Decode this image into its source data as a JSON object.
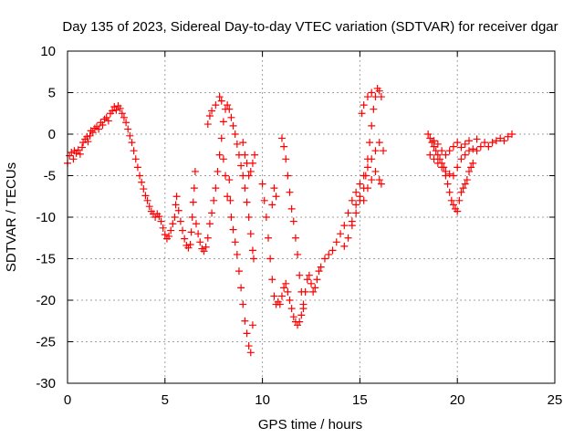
{
  "chart_data": {
    "type": "scatter",
    "title": "Day 135 of 2023, Sidereal Day-to-day VTEC variation (SDTVAR) for receiver dgar",
    "xlabel": "GPS time / hours",
    "ylabel": "SDTVAR / TECUs",
    "xlim": [
      0,
      25
    ],
    "ylim": [
      -30,
      10
    ],
    "xticks": [
      0,
      5,
      10,
      15,
      20,
      25
    ],
    "yticks": [
      -30,
      -25,
      -20,
      -15,
      -10,
      -5,
      0,
      5,
      10
    ],
    "grid": true,
    "marker": "plus",
    "color": "#ff0000",
    "points": [
      [
        0.0,
        -3.5
      ],
      [
        0.1,
        -2.6
      ],
      [
        0.2,
        -2.2
      ],
      [
        0.3,
        -3.0
      ],
      [
        0.35,
        -2.0
      ],
      [
        0.45,
        -2.3
      ],
      [
        0.55,
        -1.9
      ],
      [
        0.65,
        -2.4
      ],
      [
        0.75,
        -1.6
      ],
      [
        0.8,
        -1.0
      ],
      [
        0.9,
        -0.6
      ],
      [
        1.0,
        -0.3
      ],
      [
        1.05,
        -0.9
      ],
      [
        1.15,
        -0.2
      ],
      [
        1.2,
        0.4
      ],
      [
        1.3,
        0.2
      ],
      [
        1.4,
        0.7
      ],
      [
        1.5,
        0.9
      ],
      [
        1.6,
        0.6
      ],
      [
        1.7,
        1.4
      ],
      [
        1.8,
        1.1
      ],
      [
        1.9,
        1.8
      ],
      [
        2.0,
        2.0
      ],
      [
        2.1,
        1.6
      ],
      [
        2.2,
        2.5
      ],
      [
        2.3,
        2.8
      ],
      [
        2.4,
        3.3
      ],
      [
        2.5,
        2.9
      ],
      [
        2.6,
        3.4
      ],
      [
        2.7,
        3.1
      ],
      [
        2.8,
        2.5
      ],
      [
        2.9,
        2.0
      ],
      [
        3.0,
        1.4
      ],
      [
        3.1,
        0.6
      ],
      [
        3.2,
        -0.2
      ],
      [
        3.3,
        -1.0
      ],
      [
        3.4,
        -2.0
      ],
      [
        3.5,
        -3.0
      ],
      [
        3.6,
        -4.0
      ],
      [
        3.7,
        -5.0
      ],
      [
        3.8,
        -5.8
      ],
      [
        3.9,
        -6.6
      ],
      [
        4.0,
        -7.4
      ],
      [
        4.1,
        -8.0
      ],
      [
        4.2,
        -8.7
      ],
      [
        4.3,
        -9.3
      ],
      [
        4.4,
        -9.6
      ],
      [
        4.5,
        -10.0
      ],
      [
        4.6,
        -9.6
      ],
      [
        4.7,
        -9.9
      ],
      [
        4.8,
        -10.5
      ],
      [
        4.9,
        -11.3
      ],
      [
        5.0,
        -12.1
      ],
      [
        5.1,
        -12.6
      ],
      [
        5.2,
        -12.3
      ],
      [
        5.3,
        -11.6
      ],
      [
        5.4,
        -10.8
      ],
      [
        5.5,
        -10.0
      ],
      [
        5.55,
        -8.5
      ],
      [
        5.6,
        -7.5
      ],
      [
        5.7,
        -9.2
      ],
      [
        5.8,
        -10.5
      ],
      [
        5.9,
        -11.6
      ],
      [
        6.0,
        -12.6
      ],
      [
        6.1,
        -13.4
      ],
      [
        6.2,
        -13.7
      ],
      [
        6.3,
        -13.3
      ],
      [
        6.35,
        -11.8
      ],
      [
        6.4,
        -10.0
      ],
      [
        6.45,
        -8.2
      ],
      [
        6.5,
        -6.5
      ],
      [
        6.55,
        -4.5
      ],
      [
        6.6,
        -10.8
      ],
      [
        6.7,
        -12.0
      ],
      [
        6.8,
        -13.0
      ],
      [
        6.9,
        -13.8
      ],
      [
        7.0,
        -14.1
      ],
      [
        7.1,
        -13.6
      ],
      [
        7.2,
        -12.5
      ],
      [
        7.3,
        -10.8
      ],
      [
        7.4,
        -9.5
      ],
      [
        7.5,
        -8.0
      ],
      [
        7.6,
        -6.5
      ],
      [
        7.7,
        -4.5
      ],
      [
        7.8,
        -2.5
      ],
      [
        7.9,
        -0.5
      ],
      [
        8.0,
        1.5
      ],
      [
        8.1,
        3.0
      ],
      [
        8.2,
        3.5
      ],
      [
        8.3,
        3.0
      ],
      [
        8.4,
        2.0
      ],
      [
        8.5,
        1.0
      ],
      [
        8.6,
        0.0
      ],
      [
        8.7,
        -1.2
      ],
      [
        8.8,
        -2.5
      ],
      [
        8.9,
        -3.8
      ],
      [
        9.0,
        -5.0
      ],
      [
        9.1,
        -6.5
      ],
      [
        9.2,
        -8.2
      ],
      [
        9.3,
        -10.0
      ],
      [
        9.4,
        -12.0
      ],
      [
        9.5,
        -14.0
      ],
      [
        9.55,
        -15.0
      ],
      [
        7.2,
        1.2
      ],
      [
        7.3,
        2.2
      ],
      [
        7.4,
        2.8
      ],
      [
        7.6,
        3.5
      ],
      [
        7.8,
        4.5
      ],
      [
        7.9,
        4.0
      ],
      [
        8.3,
        -5.5
      ],
      [
        8.35,
        -8.0
      ],
      [
        8.4,
        -10.0
      ],
      [
        8.5,
        -11.5
      ],
      [
        8.6,
        -13.0
      ],
      [
        8.7,
        -14.5
      ],
      [
        8.8,
        -16.5
      ],
      [
        8.9,
        -18.5
      ],
      [
        9.0,
        -20.5
      ],
      [
        9.1,
        -22.5
      ],
      [
        9.2,
        -24.0
      ],
      [
        9.3,
        -25.5
      ],
      [
        9.4,
        -26.3
      ],
      [
        9.5,
        -23.0
      ],
      [
        8.0,
        -3.0
      ],
      [
        8.1,
        -5.0
      ],
      [
        8.2,
        -7.5
      ],
      [
        9.0,
        -1.0
      ],
      [
        9.1,
        -2.5
      ],
      [
        9.2,
        -3.5
      ],
      [
        9.3,
        -5.0
      ],
      [
        9.4,
        -4.5
      ],
      [
        9.5,
        -3.5
      ],
      [
        9.6,
        -2.5
      ],
      [
        10.0,
        -6.0
      ],
      [
        10.1,
        -8.0
      ],
      [
        10.2,
        -10.0
      ],
      [
        10.3,
        -12.5
      ],
      [
        10.4,
        -15.0
      ],
      [
        10.5,
        -17.5
      ],
      [
        10.6,
        -19.5
      ],
      [
        10.7,
        -20.5
      ],
      [
        10.8,
        -20.2
      ],
      [
        10.9,
        -20.5
      ],
      [
        11.0,
        -19.5
      ],
      [
        11.1,
        -18.5
      ],
      [
        11.2,
        -18.0
      ],
      [
        11.3,
        -19.0
      ],
      [
        11.4,
        -20.0
      ],
      [
        11.5,
        -21.0
      ],
      [
        11.6,
        -22.0
      ],
      [
        11.7,
        -22.6
      ],
      [
        11.8,
        -23.0
      ],
      [
        11.9,
        -22.6
      ],
      [
        12.0,
        -21.8
      ],
      [
        12.1,
        -20.5
      ],
      [
        12.2,
        -19.0
      ],
      [
        12.3,
        -17.5
      ],
      [
        11.0,
        -0.5
      ],
      [
        11.1,
        -1.5
      ],
      [
        11.2,
        -3.0
      ],
      [
        11.3,
        -5.0
      ],
      [
        11.4,
        -7.0
      ],
      [
        11.5,
        -9.0
      ],
      [
        11.6,
        -10.5
      ],
      [
        11.7,
        -12.5
      ],
      [
        11.8,
        -14.5
      ],
      [
        11.9,
        -17.0
      ],
      [
        12.0,
        -19.0
      ],
      [
        12.1,
        -21.0
      ],
      [
        10.5,
        -8.5
      ],
      [
        10.6,
        -6.5
      ],
      [
        10.7,
        -7.5
      ],
      [
        12.4,
        -17.0
      ],
      [
        12.5,
        -18.0
      ],
      [
        12.6,
        -19.0
      ],
      [
        12.7,
        -18.5
      ],
      [
        12.8,
        -17.5
      ],
      [
        12.9,
        -16.5
      ],
      [
        13.0,
        -16.0
      ],
      [
        13.2,
        -15.0
      ],
      [
        13.4,
        -14.5
      ],
      [
        13.6,
        -14.0
      ],
      [
        13.8,
        -13.0
      ],
      [
        14.0,
        -12.0
      ],
      [
        14.2,
        -11.0
      ],
      [
        14.4,
        -9.5
      ],
      [
        14.6,
        -8.0
      ],
      [
        14.8,
        -7.0
      ],
      [
        15.0,
        -6.0
      ],
      [
        15.2,
        -5.0
      ],
      [
        15.4,
        -4.0
      ],
      [
        15.6,
        -3.0
      ],
      [
        15.8,
        -2.0
      ],
      [
        16.0,
        -1.0
      ],
      [
        14.2,
        -13.5
      ],
      [
        14.4,
        -12.5
      ],
      [
        14.6,
        -11.0
      ],
      [
        14.8,
        -9.5
      ],
      [
        15.0,
        -8.0
      ],
      [
        15.2,
        -6.5
      ],
      [
        15.3,
        -5.0
      ],
      [
        15.4,
        -3.0
      ],
      [
        15.5,
        -1.0
      ],
      [
        15.6,
        1.0
      ],
      [
        15.7,
        3.0
      ],
      [
        15.8,
        4.5
      ],
      [
        15.9,
        5.5
      ],
      [
        16.0,
        5.2
      ],
      [
        16.1,
        4.5
      ],
      [
        15.1,
        2.5
      ],
      [
        15.2,
        3.5
      ],
      [
        15.4,
        4.5
      ],
      [
        15.6,
        5.0
      ],
      [
        14.6,
        -10.5
      ],
      [
        14.8,
        -8.5
      ],
      [
        15.0,
        -7.5
      ],
      [
        15.2,
        -8.0
      ],
      [
        15.4,
        -6.5
      ],
      [
        15.6,
        -5.5
      ],
      [
        15.8,
        -4.5
      ],
      [
        16.0,
        -5.5
      ],
      [
        16.1,
        -6.0
      ],
      [
        16.2,
        -2.0
      ],
      [
        18.5,
        0.0
      ],
      [
        18.6,
        -0.5
      ],
      [
        18.7,
        -1.0
      ],
      [
        18.8,
        -1.5
      ],
      [
        18.9,
        -2.0
      ],
      [
        19.0,
        -2.5
      ],
      [
        19.1,
        -3.0
      ],
      [
        19.2,
        -3.5
      ],
      [
        19.3,
        -4.0
      ],
      [
        19.4,
        -5.0
      ],
      [
        19.5,
        -6.0
      ],
      [
        19.6,
        -7.0
      ],
      [
        19.7,
        -8.0
      ],
      [
        19.8,
        -8.5
      ],
      [
        19.9,
        -9.0
      ],
      [
        20.0,
        -9.3
      ],
      [
        20.1,
        -8.0
      ],
      [
        20.2,
        -7.0
      ],
      [
        20.3,
        -6.5
      ],
      [
        20.4,
        -6.0
      ],
      [
        20.5,
        -5.5
      ],
      [
        20.6,
        -4.5
      ],
      [
        20.7,
        -4.0
      ],
      [
        20.8,
        -3.5
      ],
      [
        18.6,
        -2.5
      ],
      [
        18.8,
        -3.0
      ],
      [
        19.0,
        -3.5
      ],
      [
        19.2,
        -4.0
      ],
      [
        19.4,
        -4.5
      ],
      [
        19.6,
        -4.8
      ],
      [
        19.8,
        -5.0
      ],
      [
        20.0,
        -4.0
      ],
      [
        20.2,
        -3.0
      ],
      [
        20.4,
        -2.5
      ],
      [
        20.6,
        -2.0
      ],
      [
        20.8,
        -1.8
      ],
      [
        21.0,
        -2.0
      ],
      [
        21.2,
        -1.5
      ],
      [
        21.4,
        -1.0
      ],
      [
        21.6,
        -1.5
      ],
      [
        21.8,
        -1.0
      ],
      [
        22.0,
        -0.8
      ],
      [
        22.2,
        -0.5
      ],
      [
        22.4,
        -0.8
      ],
      [
        22.6,
        -0.3
      ],
      [
        22.8,
        0.0
      ],
      [
        18.8,
        -0.8
      ],
      [
        19.0,
        -1.2
      ],
      [
        19.2,
        -2.0
      ],
      [
        19.4,
        -2.5
      ],
      [
        19.6,
        -2.0
      ],
      [
        19.8,
        -1.5
      ],
      [
        20.0,
        -1.0
      ],
      [
        20.2,
        -1.6
      ],
      [
        20.4,
        -1.2
      ],
      [
        20.6,
        -0.8
      ],
      [
        21.0,
        -0.6
      ]
    ]
  }
}
